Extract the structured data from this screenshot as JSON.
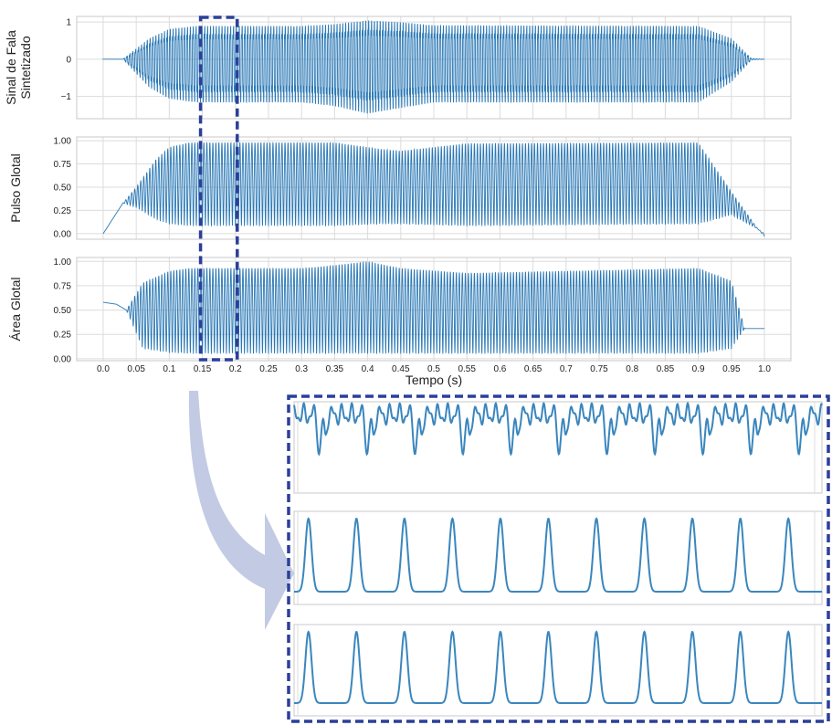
{
  "colors": {
    "signal": "#2a78b5",
    "signal_zoom": "#3a86bd",
    "grid": "#dcdcdc",
    "frame": "#c8c8c8",
    "highlight": "#2b3f9a",
    "arrow": "#b7c2de"
  },
  "chart_data": [
    {
      "type": "line",
      "ylabel": "Sinal de Fala Sintetizado",
      "ylabel_lines": [
        "Sinal de Fala",
        "Sintetizado"
      ],
      "xlim": [
        -0.04,
        1.04
      ],
      "ylim": [
        -1.6,
        1.15
      ],
      "yticks": [
        1,
        0,
        -1
      ],
      "ytick_labels": [
        "1",
        "0",
        "−1"
      ],
      "grid": true,
      "envelope": {
        "t": [
          0.0,
          0.03,
          0.07,
          0.1,
          0.14,
          0.3,
          0.35,
          0.4,
          0.45,
          0.5,
          0.9,
          0.95,
          0.98,
          1.0
        ],
        "pos": [
          0.0,
          0.0,
          0.55,
          0.8,
          0.88,
          0.88,
          0.93,
          1.03,
          0.98,
          0.9,
          0.88,
          0.55,
          0.02,
          0.0
        ],
        "neg": [
          0.0,
          0.0,
          -0.75,
          -1.05,
          -1.15,
          -1.15,
          -1.25,
          -1.45,
          -1.3,
          -1.15,
          -1.15,
          -0.6,
          -0.02,
          0.0
        ]
      }
    },
    {
      "type": "line",
      "ylabel": "Pulso Glotal",
      "xlim": [
        -0.04,
        1.04
      ],
      "ylim": [
        -0.06,
        1.04
      ],
      "yticks": [
        1.0,
        0.75,
        0.5,
        0.25,
        0.0
      ],
      "ytick_labels": [
        "1.00",
        "0.75",
        "0.50",
        "0.25",
        "0.00"
      ],
      "grid": true,
      "envelope": {
        "t": [
          0.0,
          0.03,
          0.05,
          0.08,
          0.1,
          0.13,
          0.35,
          0.42,
          0.45,
          0.55,
          0.9,
          0.95,
          0.99,
          1.0
        ],
        "max": [
          0.0,
          0.33,
          0.5,
          0.8,
          0.93,
          0.98,
          0.98,
          0.91,
          0.89,
          0.97,
          0.98,
          0.45,
          0.05,
          0.0
        ],
        "min": [
          0.0,
          0.33,
          0.28,
          0.15,
          0.1,
          0.08,
          0.08,
          0.1,
          0.1,
          0.08,
          0.1,
          0.2,
          0.05,
          -0.03
        ]
      }
    },
    {
      "type": "line",
      "ylabel": "Área Glotal",
      "xlabel": "Tempo (s)",
      "xlim": [
        -0.04,
        1.04
      ],
      "ylim": [
        -0.02,
        1.04
      ],
      "yticks": [
        1.0,
        0.75,
        0.5,
        0.25,
        0.0
      ],
      "ytick_labels": [
        "1.00",
        "0.75",
        "0.50",
        "0.25",
        "0.00"
      ],
      "xticks": [
        0.0,
        0.05,
        0.1,
        0.15,
        0.2,
        0.25,
        0.3,
        0.35,
        0.4,
        0.45,
        0.5,
        0.55,
        0.6,
        0.65,
        0.7,
        0.75,
        0.8,
        0.85,
        0.9,
        0.95,
        1.0
      ],
      "xtick_labels": [
        "0.0",
        "0.05",
        "0.1",
        "0.15",
        "0.2",
        "0.25",
        "0.3",
        "0.35",
        "0.4",
        "0.45",
        "0.5",
        "0.55",
        "0.6",
        "0.65",
        "0.7",
        "0.75",
        "0.8",
        "0.85",
        "0.9",
        "0.95",
        "1.0"
      ],
      "grid": true,
      "envelope": {
        "t": [
          0.0,
          0.02,
          0.035,
          0.06,
          0.1,
          0.13,
          0.3,
          0.35,
          0.4,
          0.45,
          0.55,
          0.9,
          0.95,
          0.97,
          1.0
        ],
        "max": [
          0.58,
          0.56,
          0.5,
          0.78,
          0.9,
          0.93,
          0.93,
          0.96,
          1.0,
          0.93,
          0.88,
          0.93,
          0.8,
          0.31,
          0.31
        ],
        "min": [
          0.58,
          0.56,
          0.5,
          0.1,
          0.06,
          0.05,
          0.05,
          0.05,
          0.05,
          0.05,
          0.05,
          0.05,
          0.1,
          0.31,
          0.31
        ]
      }
    }
  ],
  "highlight_window": {
    "t_start": 0.15,
    "t_end": 0.2
  },
  "zoom_panels": [
    {
      "source": "Sinal de Fala Sintetizado",
      "t_start": 0.15,
      "t_end": 0.2,
      "cycles": 11
    },
    {
      "source": "Pulso Glotal",
      "t_start": 0.15,
      "t_end": 0.2,
      "cycles": 11
    },
    {
      "source": "Área Glotal",
      "t_start": 0.15,
      "t_end": 0.2,
      "cycles": 11
    }
  ]
}
